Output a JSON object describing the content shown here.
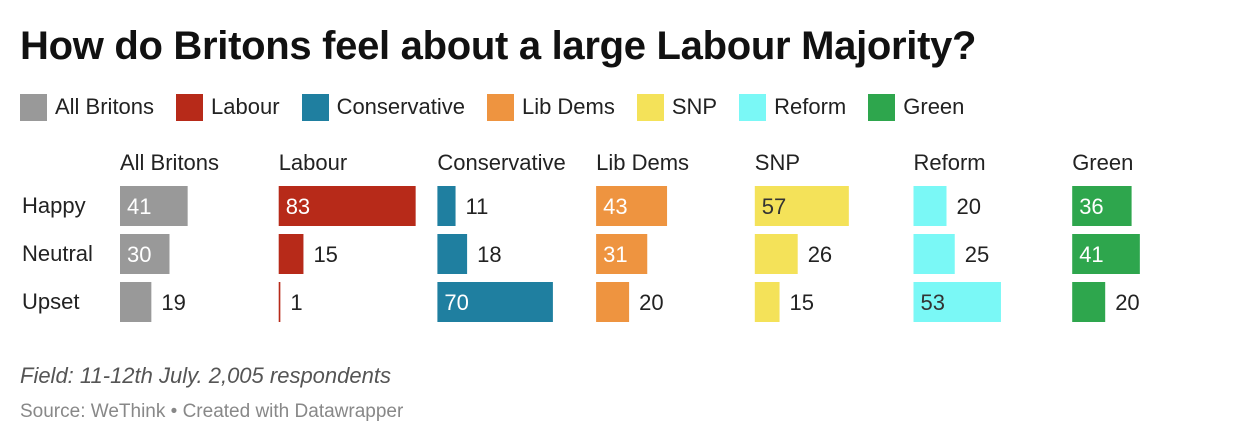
{
  "title": "How do Britons feel about a large Labour Majority?",
  "legend": [
    {
      "label": "All Britons",
      "color": "#999999"
    },
    {
      "label": "Labour",
      "color": "#B72A19"
    },
    {
      "label": "Conservative",
      "color": "#1F7FA0"
    },
    {
      "label": "Lib Dems",
      "color": "#EE9440"
    },
    {
      "label": "SNP",
      "color": "#F4E259"
    },
    {
      "label": "Reform",
      "color": "#7AF8F6"
    },
    {
      "label": "Green",
      "color": "#2EA64D"
    }
  ],
  "chart_data": {
    "type": "bar",
    "orientation": "horizontal",
    "layout": "small-multiples",
    "categories": [
      "Happy",
      "Neutral",
      "Upset"
    ],
    "series": [
      {
        "name": "All Britons",
        "color": "#999999",
        "values": [
          41,
          30,
          19
        ]
      },
      {
        "name": "Labour",
        "color": "#B72A19",
        "values": [
          83,
          15,
          1
        ]
      },
      {
        "name": "Conservative",
        "color": "#1F7FA0",
        "values": [
          11,
          18,
          70
        ]
      },
      {
        "name": "Lib Dems",
        "color": "#EE9440",
        "values": [
          43,
          31,
          20
        ]
      },
      {
        "name": "SNP",
        "color": "#F4E259",
        "values": [
          57,
          26,
          15
        ]
      },
      {
        "name": "Reform",
        "color": "#7AF8F6",
        "values": [
          20,
          25,
          53
        ]
      },
      {
        "name": "Green",
        "color": "#2EA64D",
        "values": [
          36,
          41,
          20
        ]
      }
    ],
    "xlim": [
      0,
      100
    ],
    "data_labels": true
  },
  "footer": {
    "note": "Field: 11-12th July. 2,005 respondents",
    "source": "Source: WeThink • Created with Datawrapper"
  }
}
